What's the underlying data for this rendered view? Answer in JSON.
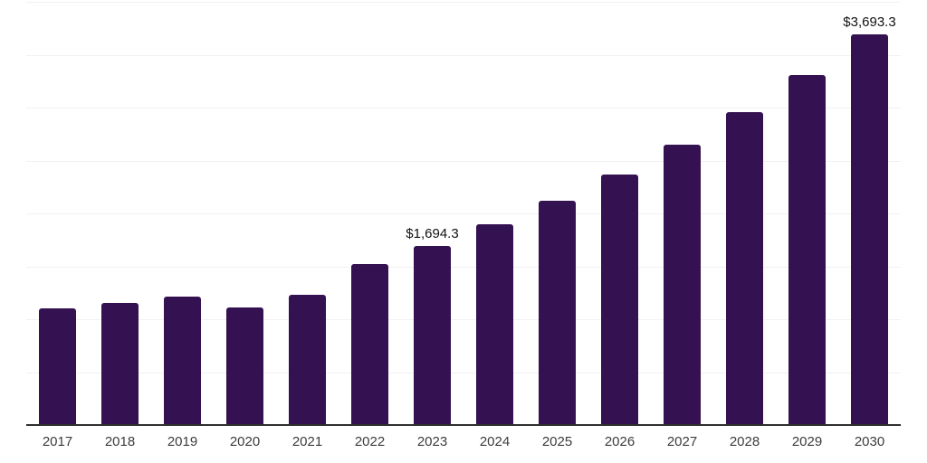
{
  "chart_data": {
    "type": "bar",
    "categories": [
      "2017",
      "2018",
      "2019",
      "2020",
      "2021",
      "2022",
      "2023",
      "2024",
      "2025",
      "2026",
      "2027",
      "2028",
      "2029",
      "2030"
    ],
    "values": [
      1105.4,
      1157.6,
      1212.0,
      1108.0,
      1227.9,
      1520.9,
      1694.3,
      1894.0,
      2117.2,
      2366.7,
      2645.6,
      2957.4,
      3305.9,
      3693.3
    ],
    "data_labels": [
      "",
      "",
      "",
      "",
      "",
      "",
      "$1,694.3",
      "",
      "",
      "",
      "",
      "",
      "",
      "$3,693.3"
    ],
    "title": "",
    "xlabel": "",
    "ylabel": "",
    "ylim": [
      0,
      4000
    ],
    "gridline_step": 500,
    "grid": "horizontal-only",
    "y_axis_tick_labels": "hidden",
    "legend": "none",
    "colors": {
      "bar": "#341150",
      "gridline": "#f1f1f1",
      "axis_line": "#2e2e2e",
      "x_tick_label": "#3c3c3c",
      "data_label": "#111111",
      "background": "#ffffff"
    }
  }
}
